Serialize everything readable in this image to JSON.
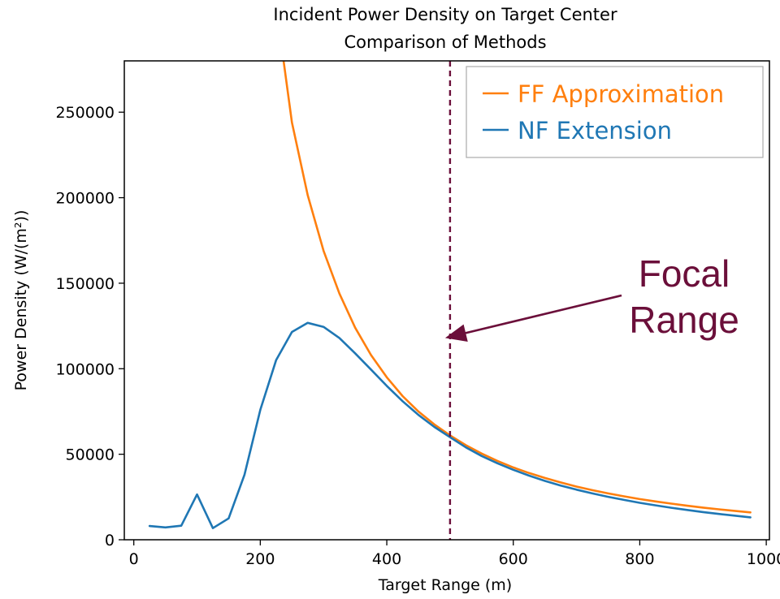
{
  "chart_data": {
    "type": "line",
    "title": "Incident Power Density on Target Center",
    "subtitle": "Comparison of Methods",
    "xlabel": "Target Range (m)",
    "ylabel": "Power Density (W/(m²))",
    "xlim": [
      -15,
      1005
    ],
    "ylim": [
      0,
      280000
    ],
    "x_ticks": [
      0,
      200,
      400,
      600,
      800,
      1000
    ],
    "y_ticks": [
      0,
      50000,
      100000,
      150000,
      200000,
      250000
    ],
    "x_tick_labels": [
      "0",
      "200",
      "400",
      "600",
      "800",
      "1000"
    ],
    "y_tick_labels": [
      "0",
      "50000",
      "100000",
      "150000",
      "200000",
      "250000"
    ],
    "grid": false,
    "legend_position": "top-right",
    "series": [
      {
        "name": "FF Approximation",
        "color": "#ff7f0e",
        "x": [
          235,
          250,
          275,
          300,
          325,
          350,
          375,
          400,
          425,
          450,
          475,
          500,
          525,
          550,
          575,
          600,
          625,
          650,
          675,
          700,
          725,
          750,
          775,
          800,
          825,
          850,
          875,
          900,
          925,
          950,
          975
        ],
        "y": [
          285000,
          244000,
          201500,
          169000,
          144000,
          124000,
          108000,
          95000,
          84000,
          75000,
          67500,
          61000,
          55300,
          50400,
          46100,
          42300,
          39000,
          36100,
          33500,
          31100,
          29000,
          27100,
          25400,
          23800,
          22400,
          21100,
          19900,
          18800,
          17800,
          16900,
          16000
        ]
      },
      {
        "name": "NF Extension",
        "color": "#1f77b4",
        "x": [
          25,
          50,
          75,
          100,
          125,
          150,
          175,
          200,
          225,
          250,
          275,
          300,
          325,
          350,
          375,
          400,
          425,
          450,
          475,
          500,
          525,
          550,
          575,
          600,
          625,
          650,
          675,
          700,
          725,
          750,
          775,
          800,
          825,
          850,
          875,
          900,
          925,
          950,
          975
        ],
        "y": [
          8000,
          7200,
          8200,
          26500,
          6800,
          12500,
          38000,
          76000,
          105000,
          121500,
          126800,
          124500,
          118000,
          109000,
          99500,
          90000,
          81000,
          73000,
          66000,
          60000,
          54000,
          49000,
          44700,
          40900,
          37500,
          34400,
          31700,
          29300,
          27100,
          25100,
          23300,
          21600,
          20100,
          18700,
          17400,
          16200,
          15100,
          14100,
          13100
        ]
      }
    ],
    "reference_line": {
      "x": 500,
      "color": "#6b0f3a",
      "style": "dashed"
    },
    "annotation": {
      "lines": [
        "Focal",
        "Range"
      ],
      "color": "#6b0f3a",
      "arrow_target": {
        "x": 500,
        "y": 118000
      }
    }
  }
}
